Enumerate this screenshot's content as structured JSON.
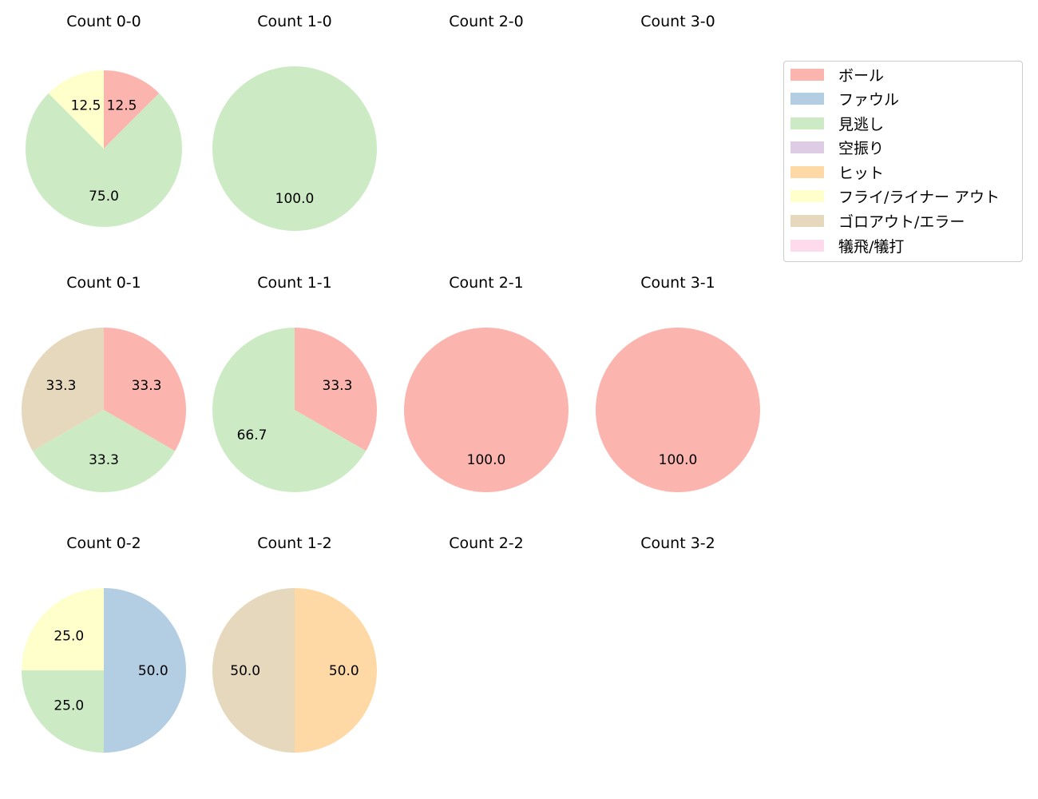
{
  "chart_data": {
    "type": "pie",
    "legend": {
      "position": "upper right",
      "entries": [
        {
          "label": "ボール",
          "color": "#fbb4ae"
        },
        {
          "label": "ファウル",
          "color": "#b3cde3"
        },
        {
          "label": "見逃し",
          "color": "#ccebc5"
        },
        {
          "label": "空振り",
          "color": "#decbe4"
        },
        {
          "label": "ヒット",
          "color": "#fed9a6"
        },
        {
          "label": "フライ/ライナー アウト",
          "color": "#ffffcc"
        },
        {
          "label": "ゴロアウト/エラー",
          "color": "#e5d8bd"
        },
        {
          "label": "犠飛/犠打",
          "color": "#fddaec"
        }
      ]
    },
    "panels": [
      {
        "title": "Count 0-0",
        "slices": [
          {
            "label": "ボール",
            "value": 12.5
          },
          {
            "label": "見逃し",
            "value": 75.0
          },
          {
            "label": "フライ/ライナー アウト",
            "value": 12.5
          }
        ]
      },
      {
        "title": "Count 1-0",
        "slices": [
          {
            "label": "見逃し",
            "value": 100.0
          }
        ]
      },
      {
        "title": "Count 2-0",
        "slices": []
      },
      {
        "title": "Count 3-0",
        "slices": []
      },
      {
        "title": "Count 0-1",
        "slices": [
          {
            "label": "ボール",
            "value": 33.3
          },
          {
            "label": "見逃し",
            "value": 33.3
          },
          {
            "label": "ゴロアウト/エラー",
            "value": 33.3
          }
        ]
      },
      {
        "title": "Count 1-1",
        "slices": [
          {
            "label": "ボール",
            "value": 33.3
          },
          {
            "label": "見逃し",
            "value": 66.7
          }
        ]
      },
      {
        "title": "Count 2-1",
        "slices": [
          {
            "label": "ボール",
            "value": 100.0
          }
        ]
      },
      {
        "title": "Count 3-1",
        "slices": [
          {
            "label": "ボール",
            "value": 100.0
          }
        ]
      },
      {
        "title": "Count 0-2",
        "slices": [
          {
            "label": "ファウル",
            "value": 50.0
          },
          {
            "label": "見逃し",
            "value": 25.0
          },
          {
            "label": "フライ/ライナー アウト",
            "value": 25.0
          }
        ]
      },
      {
        "title": "Count 1-2",
        "slices": [
          {
            "label": "ヒット",
            "value": 50.0
          },
          {
            "label": "ゴロアウト/エラー",
            "value": 50.0
          }
        ]
      },
      {
        "title": "Count 2-2",
        "slices": []
      },
      {
        "title": "Count 3-2",
        "slices": []
      }
    ]
  },
  "panels": [
    {
      "title": "Count 0-0"
    },
    {
      "title": "Count 1-0"
    },
    {
      "title": "Count 2-0"
    },
    {
      "title": "Count 3-0"
    },
    {
      "title": "Count 0-1"
    },
    {
      "title": "Count 1-1"
    },
    {
      "title": "Count 2-1"
    },
    {
      "title": "Count 3-1"
    },
    {
      "title": "Count 0-2"
    },
    {
      "title": "Count 1-2"
    },
    {
      "title": "Count 2-2"
    },
    {
      "title": "Count 3-2"
    }
  ],
  "legend": {
    "items": [
      {
        "label": "ボール",
        "color": "#fbb4ae"
      },
      {
        "label": "ファウル",
        "color": "#b3cde3"
      },
      {
        "label": "見逃し",
        "color": "#ccebc5"
      },
      {
        "label": "空振り",
        "color": "#decbe4"
      },
      {
        "label": "ヒット",
        "color": "#fed9a6"
      },
      {
        "label": "フライ/ライナー アウト",
        "color": "#ffffcc"
      },
      {
        "label": "ゴロアウト/エラー",
        "color": "#e5d8bd"
      },
      {
        "label": "犠飛/犠打",
        "color": "#fddaec"
      }
    ]
  }
}
